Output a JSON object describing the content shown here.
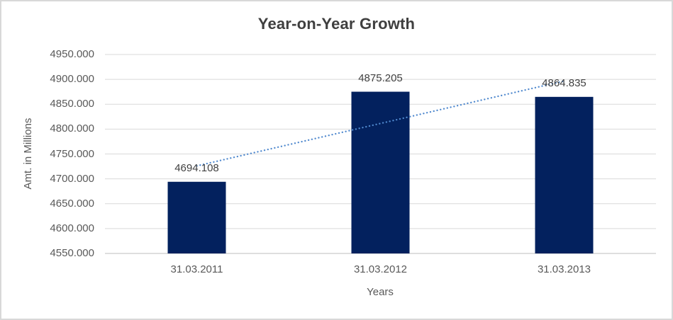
{
  "chart_data": {
    "type": "bar",
    "title": "Year-on-Year Growth",
    "xlabel": "Years",
    "ylabel": "Amt. in Millions",
    "categories": [
      "31.03.2011",
      "31.03.2012",
      "31.03.2013"
    ],
    "values": [
      4694.108,
      4875.205,
      4864.835
    ],
    "data_labels": [
      "4694.108",
      "4875.205",
      "4864.835"
    ],
    "ylim": [
      4550,
      4950
    ],
    "ytick_step": 50,
    "ytick_labels": [
      "4550.000",
      "4600.000",
      "4650.000",
      "4700.000",
      "4750.000",
      "4800.000",
      "4850.000",
      "4900.000",
      "4950.000"
    ],
    "grid": true,
    "legend_position": "none",
    "trendline": {
      "type": "linear",
      "style": "dotted"
    },
    "colors": {
      "bar": "#03215E",
      "trendline": "#5089CE",
      "gridline": "#D9D9D9",
      "axis_line": "#D4D4D4",
      "title_text": "#3F3F3F",
      "axis_text": "#595959",
      "data_label_text": "#404040",
      "border": "#D8D8D8",
      "background": "#FFFFFF"
    }
  }
}
